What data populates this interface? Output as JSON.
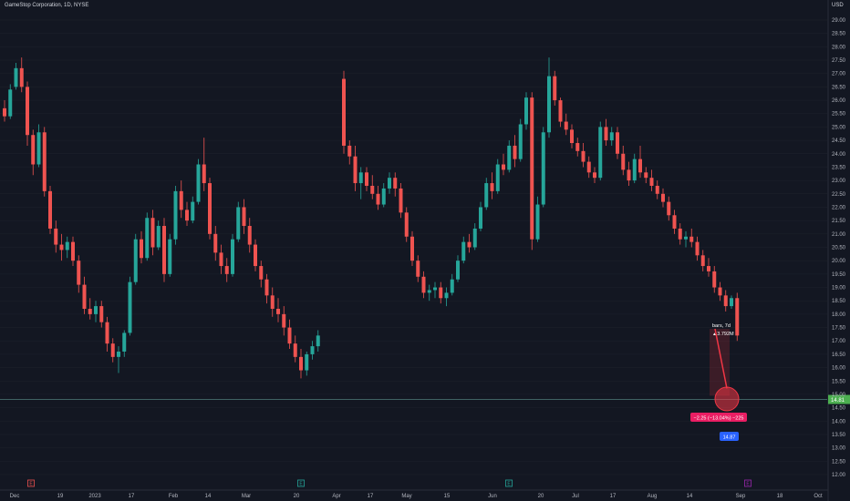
{
  "header": {
    "title": "GameStop Corporation, 1D, NYSE",
    "currency": "USD"
  },
  "colors": {
    "background": "#131722",
    "up": "#26a69a",
    "down": "#ef5350",
    "grid": "#1e222d",
    "price_line": "#4f7c7a",
    "price_badge": "#4caf50",
    "measure": "#f23645",
    "target_badge": "#2962ff"
  },
  "chart_data": {
    "type": "candlestick",
    "title": "GameStop Corporation, 1D, NYSE",
    "ylim": [
      12.0,
      29.3
    ],
    "y_ticks": [
      "29.00",
      "28.50",
      "28.00",
      "27.50",
      "27.00",
      "26.50",
      "26.00",
      "25.50",
      "25.00",
      "24.50",
      "24.00",
      "23.50",
      "23.00",
      "22.50",
      "22.00",
      "21.50",
      "21.00",
      "20.50",
      "20.00",
      "19.50",
      "19.00",
      "18.50",
      "18.00",
      "17.50",
      "17.00",
      "16.50",
      "16.00",
      "15.50",
      "15.00",
      "14.50",
      "14.00",
      "13.50",
      "13.00",
      "12.50",
      "12.00"
    ],
    "x_ticks": [
      "Dec",
      "19",
      "2023",
      "17",
      "Feb",
      "14",
      "Mar",
      "20",
      "Apr",
      "17",
      "May",
      "15",
      "Jun",
      "20",
      "Jul",
      "17",
      "Aug",
      "14",
      "Sep",
      "18",
      "Oct"
    ],
    "current_price": "14.81",
    "target_price": "14.87",
    "measure": {
      "bars_label": "bars, 7d",
      "volume_label": "3.792M",
      "change_label": "−2.25 (−13.04%) −225"
    },
    "event_markers": [
      "E",
      "E",
      "E",
      "E"
    ],
    "candles": [
      [
        25.7,
        26.0,
        25.2,
        25.4
      ],
      [
        25.4,
        26.6,
        25.3,
        26.4
      ],
      [
        26.5,
        27.4,
        26.4,
        27.2
      ],
      [
        27.2,
        27.6,
        26.3,
        26.5
      ],
      [
        26.5,
        26.7,
        24.3,
        24.7
      ],
      [
        24.7,
        24.9,
        23.2,
        23.6
      ],
      [
        23.6,
        25.1,
        23.5,
        24.8
      ],
      [
        24.8,
        25.0,
        22.4,
        22.6
      ],
      [
        22.6,
        22.8,
        21.0,
        21.2
      ],
      [
        21.2,
        21.5,
        20.3,
        20.6
      ],
      [
        20.6,
        21.0,
        20.0,
        20.4
      ],
      [
        20.4,
        20.9,
        20.1,
        20.7
      ],
      [
        20.7,
        20.9,
        19.8,
        20.0
      ],
      [
        20.0,
        20.2,
        18.8,
        19.1
      ],
      [
        19.1,
        19.4,
        18.0,
        18.2
      ],
      [
        18.2,
        18.6,
        17.8,
        18.0
      ],
      [
        18.0,
        18.5,
        17.7,
        18.3
      ],
      [
        18.3,
        18.5,
        17.5,
        17.7
      ],
      [
        17.7,
        17.9,
        16.6,
        16.9
      ],
      [
        16.9,
        17.1,
        16.2,
        16.4
      ],
      [
        16.4,
        16.8,
        15.8,
        16.6
      ],
      [
        16.6,
        17.4,
        16.4,
        17.3
      ],
      [
        17.3,
        19.4,
        17.2,
        19.2
      ],
      [
        19.2,
        21.0,
        19.1,
        20.8
      ],
      [
        20.8,
        21.1,
        19.9,
        20.1
      ],
      [
        20.1,
        21.8,
        20.0,
        21.6
      ],
      [
        21.6,
        21.9,
        20.2,
        20.5
      ],
      [
        20.5,
        21.5,
        20.4,
        21.3
      ],
      [
        21.3,
        21.6,
        19.2,
        19.5
      ],
      [
        19.5,
        21.0,
        19.4,
        20.8
      ],
      [
        20.8,
        22.8,
        20.6,
        22.6
      ],
      [
        22.6,
        23.0,
        21.6,
        21.9
      ],
      [
        21.9,
        22.2,
        21.3,
        21.5
      ],
      [
        21.5,
        22.4,
        21.4,
        22.2
      ],
      [
        22.2,
        23.8,
        22.1,
        23.6
      ],
      [
        23.6,
        24.6,
        22.6,
        22.9
      ],
      [
        22.9,
        23.1,
        20.8,
        21.0
      ],
      [
        21.0,
        21.3,
        20.0,
        20.3
      ],
      [
        20.3,
        20.6,
        19.5,
        19.8
      ],
      [
        19.8,
        20.1,
        19.2,
        19.5
      ],
      [
        19.5,
        21.0,
        19.4,
        20.8
      ],
      [
        20.8,
        22.2,
        20.7,
        22.0
      ],
      [
        22.0,
        22.3,
        21.0,
        21.3
      ],
      [
        21.3,
        21.6,
        20.3,
        20.6
      ],
      [
        20.6,
        20.8,
        19.6,
        19.8
      ],
      [
        19.8,
        20.0,
        19.0,
        19.3
      ],
      [
        19.3,
        19.5,
        18.4,
        18.7
      ],
      [
        18.7,
        19.0,
        17.9,
        18.2
      ],
      [
        18.2,
        18.6,
        17.7,
        18.0
      ],
      [
        18.0,
        18.3,
        17.2,
        17.5
      ],
      [
        17.5,
        17.8,
        16.7,
        16.9
      ],
      [
        16.9,
        17.2,
        16.2,
        16.4
      ],
      [
        16.4,
        16.7,
        15.6,
        15.9
      ],
      [
        15.9,
        16.6,
        15.7,
        16.5
      ],
      [
        16.5,
        17.0,
        16.3,
        16.8
      ],
      [
        16.8,
        17.4,
        16.6,
        17.2
      ],
      [
        26.8,
        27.1,
        24.0,
        24.3
      ],
      [
        24.3,
        24.5,
        23.6,
        23.9
      ],
      [
        23.9,
        24.3,
        22.6,
        22.9
      ],
      [
        22.9,
        23.5,
        22.3,
        23.3
      ],
      [
        23.3,
        23.5,
        22.6,
        22.8
      ],
      [
        22.8,
        23.2,
        22.3,
        22.5
      ],
      [
        22.5,
        22.8,
        21.9,
        22.1
      ],
      [
        22.1,
        22.9,
        22.0,
        22.7
      ],
      [
        22.7,
        23.3,
        22.5,
        23.1
      ],
      [
        23.1,
        23.3,
        22.4,
        22.7
      ],
      [
        22.7,
        22.9,
        21.6,
        21.8
      ],
      [
        21.8,
        22.0,
        20.7,
        20.9
      ],
      [
        20.9,
        21.1,
        19.8,
        20.0
      ],
      [
        20.0,
        20.2,
        19.2,
        19.4
      ],
      [
        19.4,
        19.6,
        18.6,
        18.8
      ],
      [
        18.8,
        19.1,
        18.5,
        18.9
      ],
      [
        18.9,
        19.2,
        18.6,
        19.0
      ],
      [
        19.0,
        19.2,
        18.4,
        18.6
      ],
      [
        18.6,
        19.0,
        18.3,
        18.8
      ],
      [
        18.8,
        19.5,
        18.7,
        19.3
      ],
      [
        19.3,
        20.2,
        19.2,
        20.0
      ],
      [
        20.0,
        20.9,
        19.9,
        20.7
      ],
      [
        20.7,
        21.0,
        20.3,
        20.5
      ],
      [
        20.5,
        21.4,
        20.4,
        21.2
      ],
      [
        21.2,
        22.2,
        21.1,
        22.0
      ],
      [
        22.0,
        23.1,
        21.9,
        22.9
      ],
      [
        22.9,
        23.3,
        22.3,
        22.6
      ],
      [
        22.6,
        23.8,
        22.5,
        23.6
      ],
      [
        23.6,
        24.0,
        23.2,
        23.4
      ],
      [
        23.4,
        24.5,
        23.3,
        24.3
      ],
      [
        24.3,
        24.7,
        23.5,
        23.8
      ],
      [
        23.8,
        25.3,
        23.7,
        25.1
      ],
      [
        25.1,
        26.3,
        24.9,
        26.1
      ],
      [
        26.1,
        26.3,
        20.4,
        20.8
      ],
      [
        20.8,
        22.4,
        20.7,
        22.1
      ],
      [
        22.1,
        25.0,
        22.0,
        24.8
      ],
      [
        24.8,
        27.6,
        24.6,
        26.9
      ],
      [
        26.9,
        27.1,
        25.8,
        26.0
      ],
      [
        26.0,
        26.1,
        25.0,
        25.2
      ],
      [
        25.2,
        25.5,
        24.7,
        24.9
      ],
      [
        24.9,
        25.1,
        24.2,
        24.4
      ],
      [
        24.4,
        24.6,
        23.9,
        24.1
      ],
      [
        24.1,
        24.4,
        23.5,
        23.7
      ],
      [
        23.7,
        23.9,
        23.1,
        23.3
      ],
      [
        23.3,
        23.5,
        22.9,
        23.1
      ],
      [
        23.1,
        25.2,
        23.0,
        25.0
      ],
      [
        25.0,
        25.3,
        24.3,
        24.5
      ],
      [
        24.5,
        25.0,
        24.3,
        24.8
      ],
      [
        24.8,
        25.0,
        23.8,
        24.0
      ],
      [
        24.0,
        24.3,
        23.2,
        23.4
      ],
      [
        23.4,
        23.7,
        22.8,
        23.0
      ],
      [
        23.0,
        24.0,
        22.9,
        23.8
      ],
      [
        23.8,
        24.3,
        23.1,
        23.3
      ],
      [
        23.3,
        23.5,
        22.9,
        23.1
      ],
      [
        23.1,
        23.4,
        22.6,
        22.8
      ],
      [
        22.8,
        23.0,
        22.3,
        22.5
      ],
      [
        22.5,
        22.7,
        22.0,
        22.2
      ],
      [
        22.2,
        22.4,
        21.5,
        21.7
      ],
      [
        21.7,
        21.9,
        21.0,
        21.2
      ],
      [
        21.2,
        21.4,
        20.6,
        20.8
      ],
      [
        20.8,
        21.1,
        20.5,
        20.9
      ],
      [
        20.9,
        21.2,
        20.5,
        20.7
      ],
      [
        20.7,
        20.9,
        20.0,
        20.2
      ],
      [
        20.2,
        20.4,
        19.6,
        19.8
      ],
      [
        19.8,
        20.1,
        19.4,
        19.6
      ],
      [
        19.6,
        19.8,
        18.8,
        19.0
      ],
      [
        19.0,
        19.2,
        18.5,
        18.7
      ],
      [
        18.7,
        18.9,
        18.1,
        18.3
      ],
      [
        18.3,
        18.7,
        18.2,
        18.6
      ],
      [
        18.6,
        18.8,
        17.0,
        17.2
      ]
    ]
  }
}
